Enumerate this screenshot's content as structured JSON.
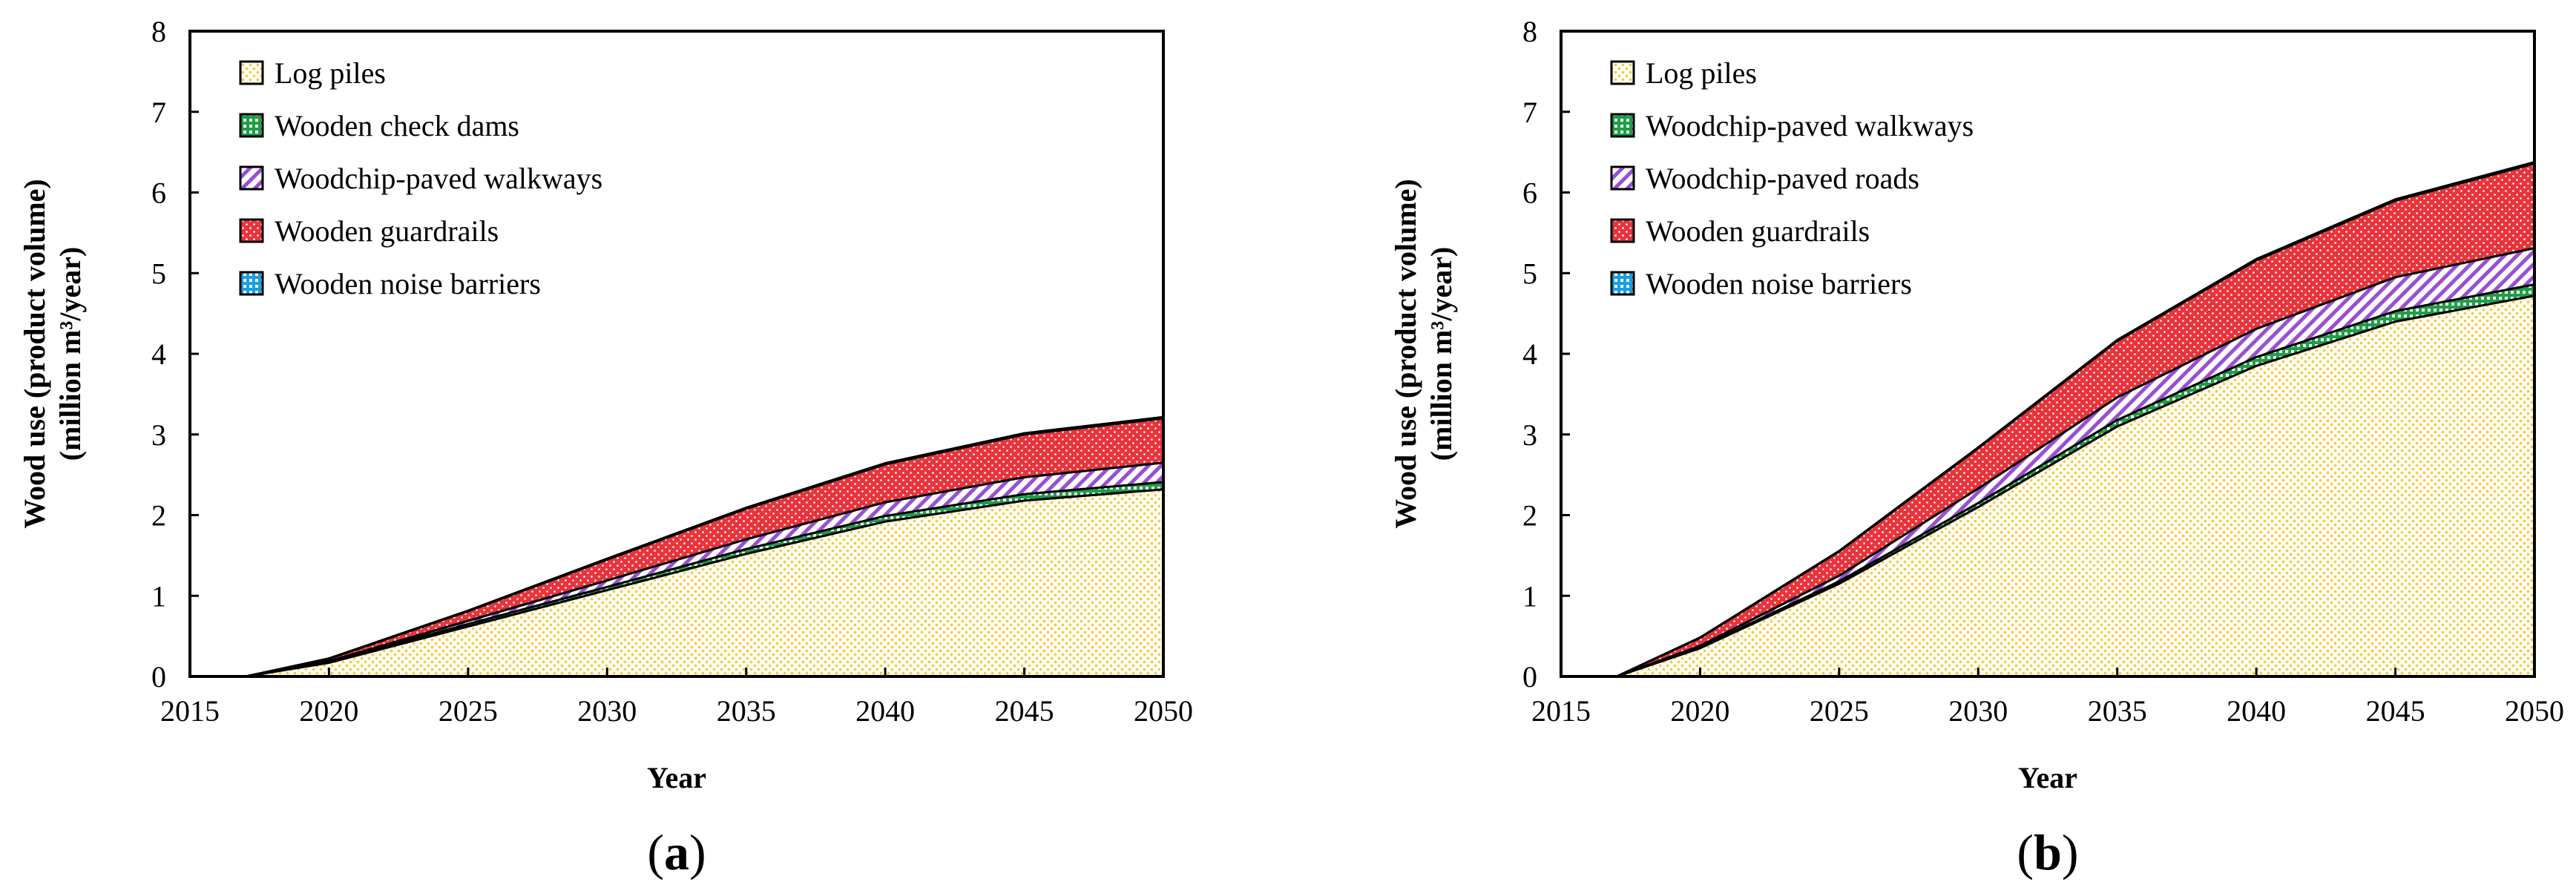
{
  "chart_data": [
    {
      "type": "area",
      "stacked": true,
      "panel_label_prefix": "(",
      "panel_label_letter": "a",
      "panel_label_suffix": ")",
      "xlabel": "Year",
      "ylabel_line1": "Wood use (product volume)",
      "ylabel_line2": "(million m³/year)",
      "xlim": [
        2015,
        2050
      ],
      "ylim": [
        0,
        8
      ],
      "xticks": [
        "2015",
        "2020",
        "2025",
        "2030",
        "2035",
        "2040",
        "2045",
        "2050"
      ],
      "yticks": [
        "0",
        "1",
        "2",
        "3",
        "4",
        "5",
        "6",
        "7",
        "8"
      ],
      "legend_position": "top-left",
      "x": [
        2017,
        2020,
        2025,
        2030,
        2035,
        2040,
        2045,
        2050
      ],
      "series": [
        {
          "name": "Log piles",
          "color": "#f5c842",
          "pattern": "dots",
          "values": [
            0,
            0.17,
            0.62,
            1.07,
            1.52,
            1.92,
            2.18,
            2.32
          ]
        },
        {
          "name": "Wooden check dams",
          "color": "#1f9e47",
          "pattern": "checks",
          "values": [
            0,
            0.01,
            0.03,
            0.04,
            0.06,
            0.07,
            0.08,
            0.09
          ]
        },
        {
          "name": "Woodchip-paved walkways",
          "color": "#9a4fd1",
          "pattern": "hatch",
          "values": [
            0,
            0.01,
            0.04,
            0.08,
            0.12,
            0.17,
            0.21,
            0.24
          ]
        },
        {
          "name": "Wooden guardrails",
          "color": "#e8343c",
          "pattern": "checks",
          "values": [
            0,
            0.03,
            0.12,
            0.26,
            0.38,
            0.47,
            0.53,
            0.55
          ]
        },
        {
          "name": "Wooden noise barriers",
          "color": "#1aa0e0",
          "pattern": "checks",
          "values": [
            0,
            0.003,
            0.006,
            0.01,
            0.012,
            0.014,
            0.015,
            0.016
          ]
        }
      ]
    },
    {
      "type": "area",
      "stacked": true,
      "panel_label_prefix": "(",
      "panel_label_letter": "b",
      "panel_label_suffix": ")",
      "xlabel": "Year",
      "ylabel_line1": "Wood use (product volume)",
      "ylabel_line2": "(million m³/year)",
      "xlim": [
        2015,
        2050
      ],
      "ylim": [
        0,
        8
      ],
      "xticks": [
        "2015",
        "2020",
        "2025",
        "2030",
        "2035",
        "2040",
        "2045",
        "2050"
      ],
      "yticks": [
        "0",
        "1",
        "2",
        "3",
        "4",
        "5",
        "6",
        "7",
        "8"
      ],
      "legend_position": "top-left",
      "x": [
        2017,
        2020,
        2025,
        2030,
        2035,
        2040,
        2045,
        2050
      ],
      "series": [
        {
          "name": "Log piles",
          "color": "#f5c842",
          "pattern": "dots",
          "values": [
            0,
            0.35,
            1.15,
            2.1,
            3.1,
            3.85,
            4.4,
            4.72
          ]
        },
        {
          "name": "Woodchip-paved walkways",
          "color": "#1f9e47",
          "pattern": "checks",
          "values": [
            0,
            0.01,
            0.03,
            0.05,
            0.08,
            0.11,
            0.13,
            0.14
          ]
        },
        {
          "name": "Woodchip-paved roads",
          "color": "#9a4fd1",
          "pattern": "hatch",
          "values": [
            0,
            0.02,
            0.07,
            0.18,
            0.28,
            0.35,
            0.42,
            0.45
          ]
        },
        {
          "name": "Wooden guardrails",
          "color": "#e8343c",
          "pattern": "checks",
          "values": [
            0,
            0.1,
            0.3,
            0.5,
            0.7,
            0.85,
            0.95,
            1.05
          ]
        },
        {
          "name": "Wooden noise barriers",
          "color": "#1aa0e0",
          "pattern": "checks",
          "values": [
            0,
            0.003,
            0.006,
            0.01,
            0.012,
            0.014,
            0.015,
            0.016
          ]
        }
      ]
    }
  ]
}
